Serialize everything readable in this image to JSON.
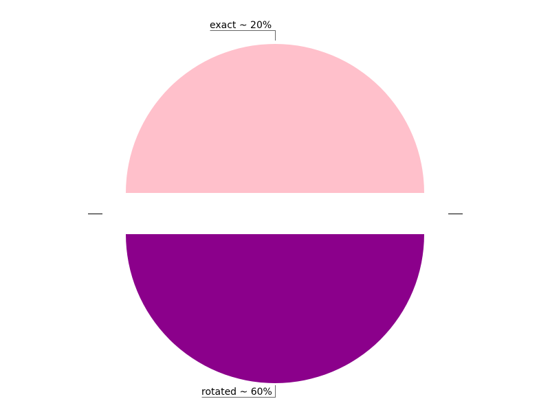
{
  "chart_data": {
    "type": "pie",
    "slices": [
      {
        "label": "exact ~ 20%",
        "value": 20,
        "color": "#FFC0CB"
      },
      {
        "label": "rotated ~ 60%",
        "value": 60,
        "color": "#8B008B"
      }
    ],
    "layout_note": "",
    "legend": "none"
  }
}
